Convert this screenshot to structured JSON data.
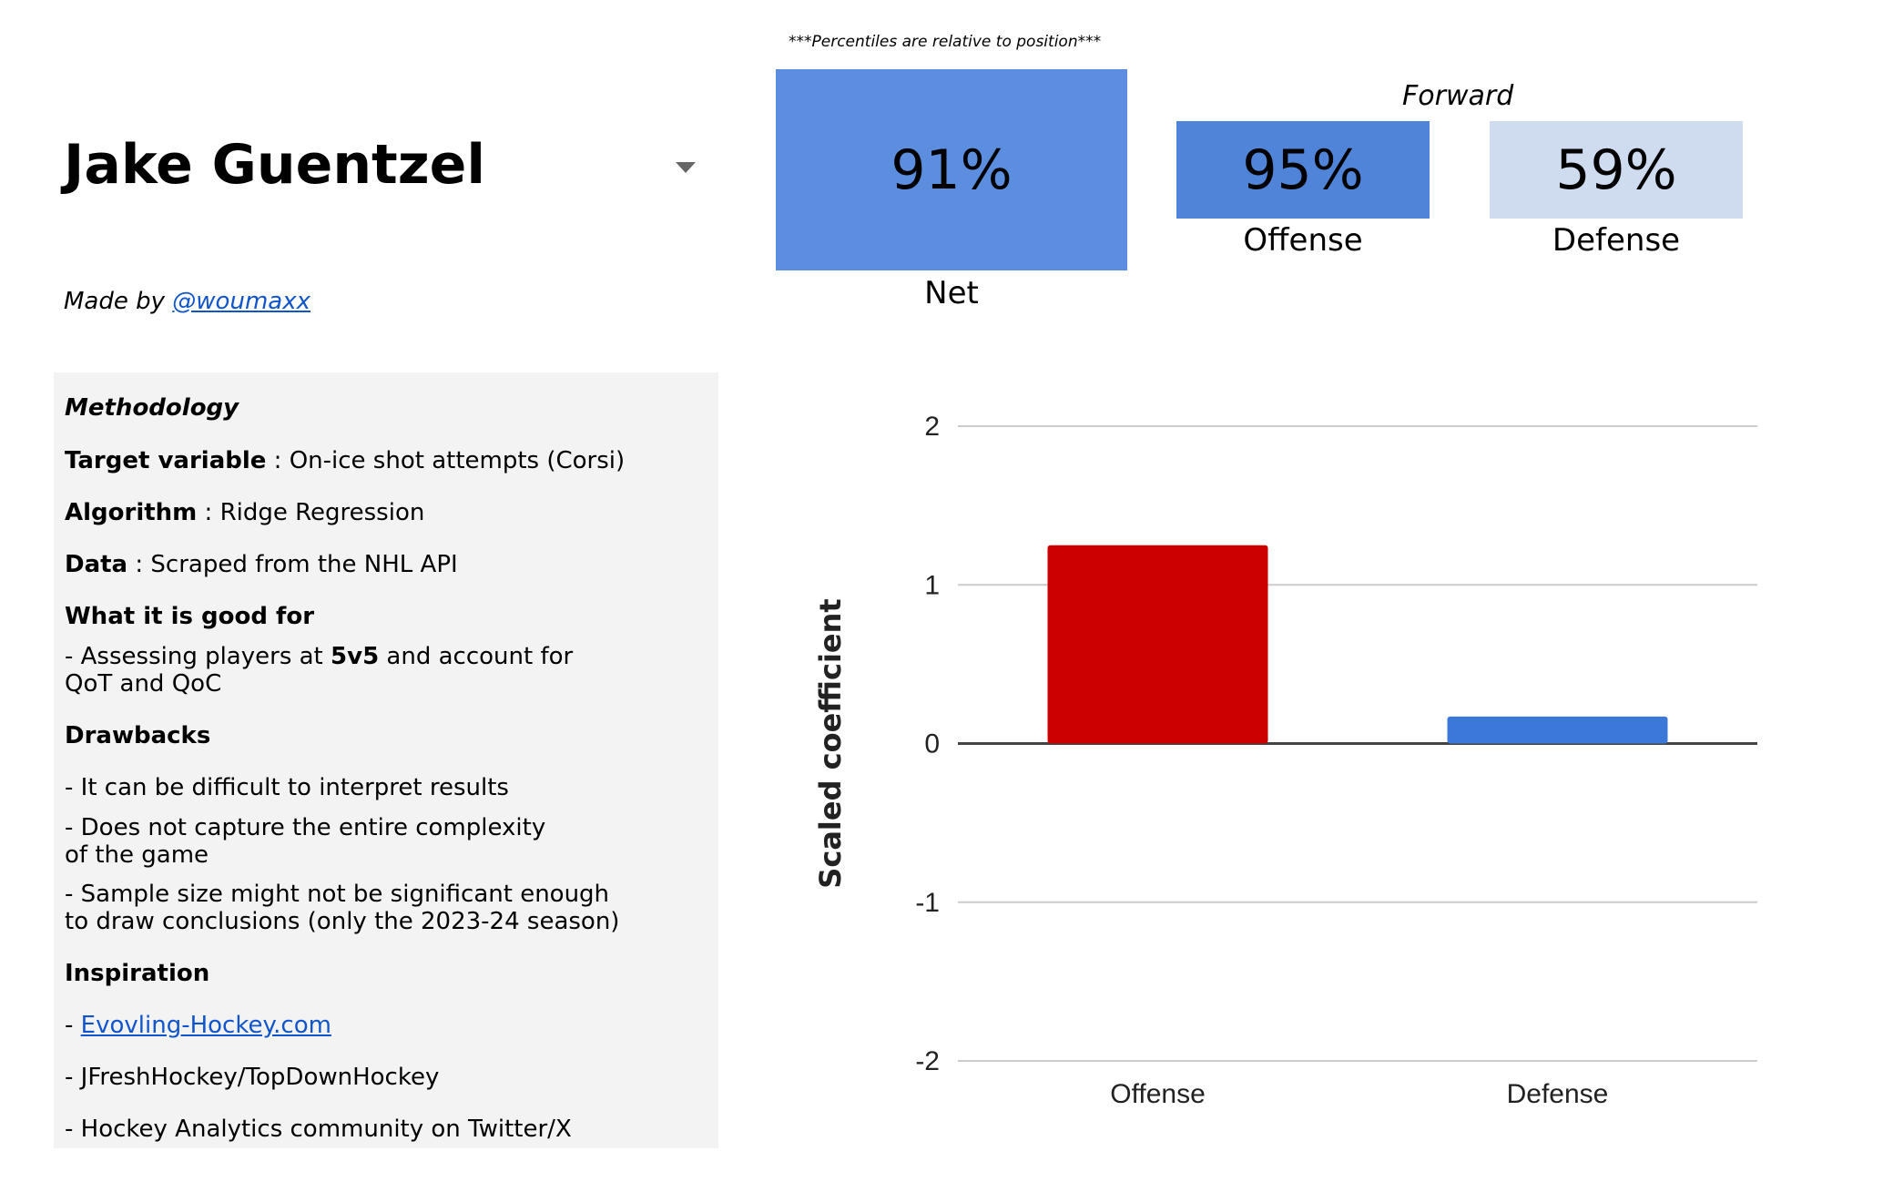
{
  "player": {
    "name": "Jake Guentzel"
  },
  "credit": {
    "prefix": "Made by ",
    "handle": "@woumaxx"
  },
  "methodology": {
    "title": "Methodology",
    "target_label": "Target variable",
    "target_value": " : On-ice shot attempts (Corsi)",
    "algorithm_label": "Algorithm",
    "algorithm_value": " : Ridge Regression",
    "data_label": "Data",
    "data_value": " : Scraped from the NHL API",
    "good_for_title": "What it is good for",
    "good_for_line1_pre": "- Assessing players at ",
    "good_for_line1_bold": "5v5",
    "good_for_line1_post": " and account for",
    "good_for_line2": "QoT and QoC",
    "drawbacks_title": "Drawbacks",
    "drawback1": "- It can be difficult to interpret results",
    "drawback2_line1": "- Does not capture the entire complexity",
    "drawback2_line2": "of the game",
    "drawback3_line1": "- Sample size might not be significant enough",
    "drawback3_line2": "to draw conclusions (only the 2023-24 season)",
    "inspiration_title": "Inspiration",
    "inspiration1_prefix": "- ",
    "inspiration1_link": "Evovling-Hockey.com",
    "inspiration2": "- JFreshHockey/TopDownHockey",
    "inspiration3": "- Hockey Analytics community on Twitter/X"
  },
  "percentiles": {
    "note": "***Percentiles are relative to position***",
    "position": "Forward",
    "net": {
      "value": "91%",
      "label": "Net"
    },
    "offense": {
      "value": "95%",
      "label": "Offense"
    },
    "defense": {
      "value": "59%",
      "label": "Defense"
    }
  },
  "colors": {
    "net_tile": "#5b8ede",
    "offense_tile": "#4f84d9",
    "defense_tile": "#cfdbef",
    "offense_bar": "#cc0000",
    "defense_bar": "#3c78d8"
  },
  "chart_data": {
    "type": "bar",
    "categories": [
      "Offense",
      "Defense"
    ],
    "values": [
      1.25,
      0.17
    ],
    "bar_colors": [
      "#cc0000",
      "#3c78d8"
    ],
    "ylabel": "Scaled coefficient",
    "ylim": [
      -2,
      2
    ],
    "yticks": [
      2,
      1,
      0,
      -1,
      -2
    ],
    "grid": true
  }
}
